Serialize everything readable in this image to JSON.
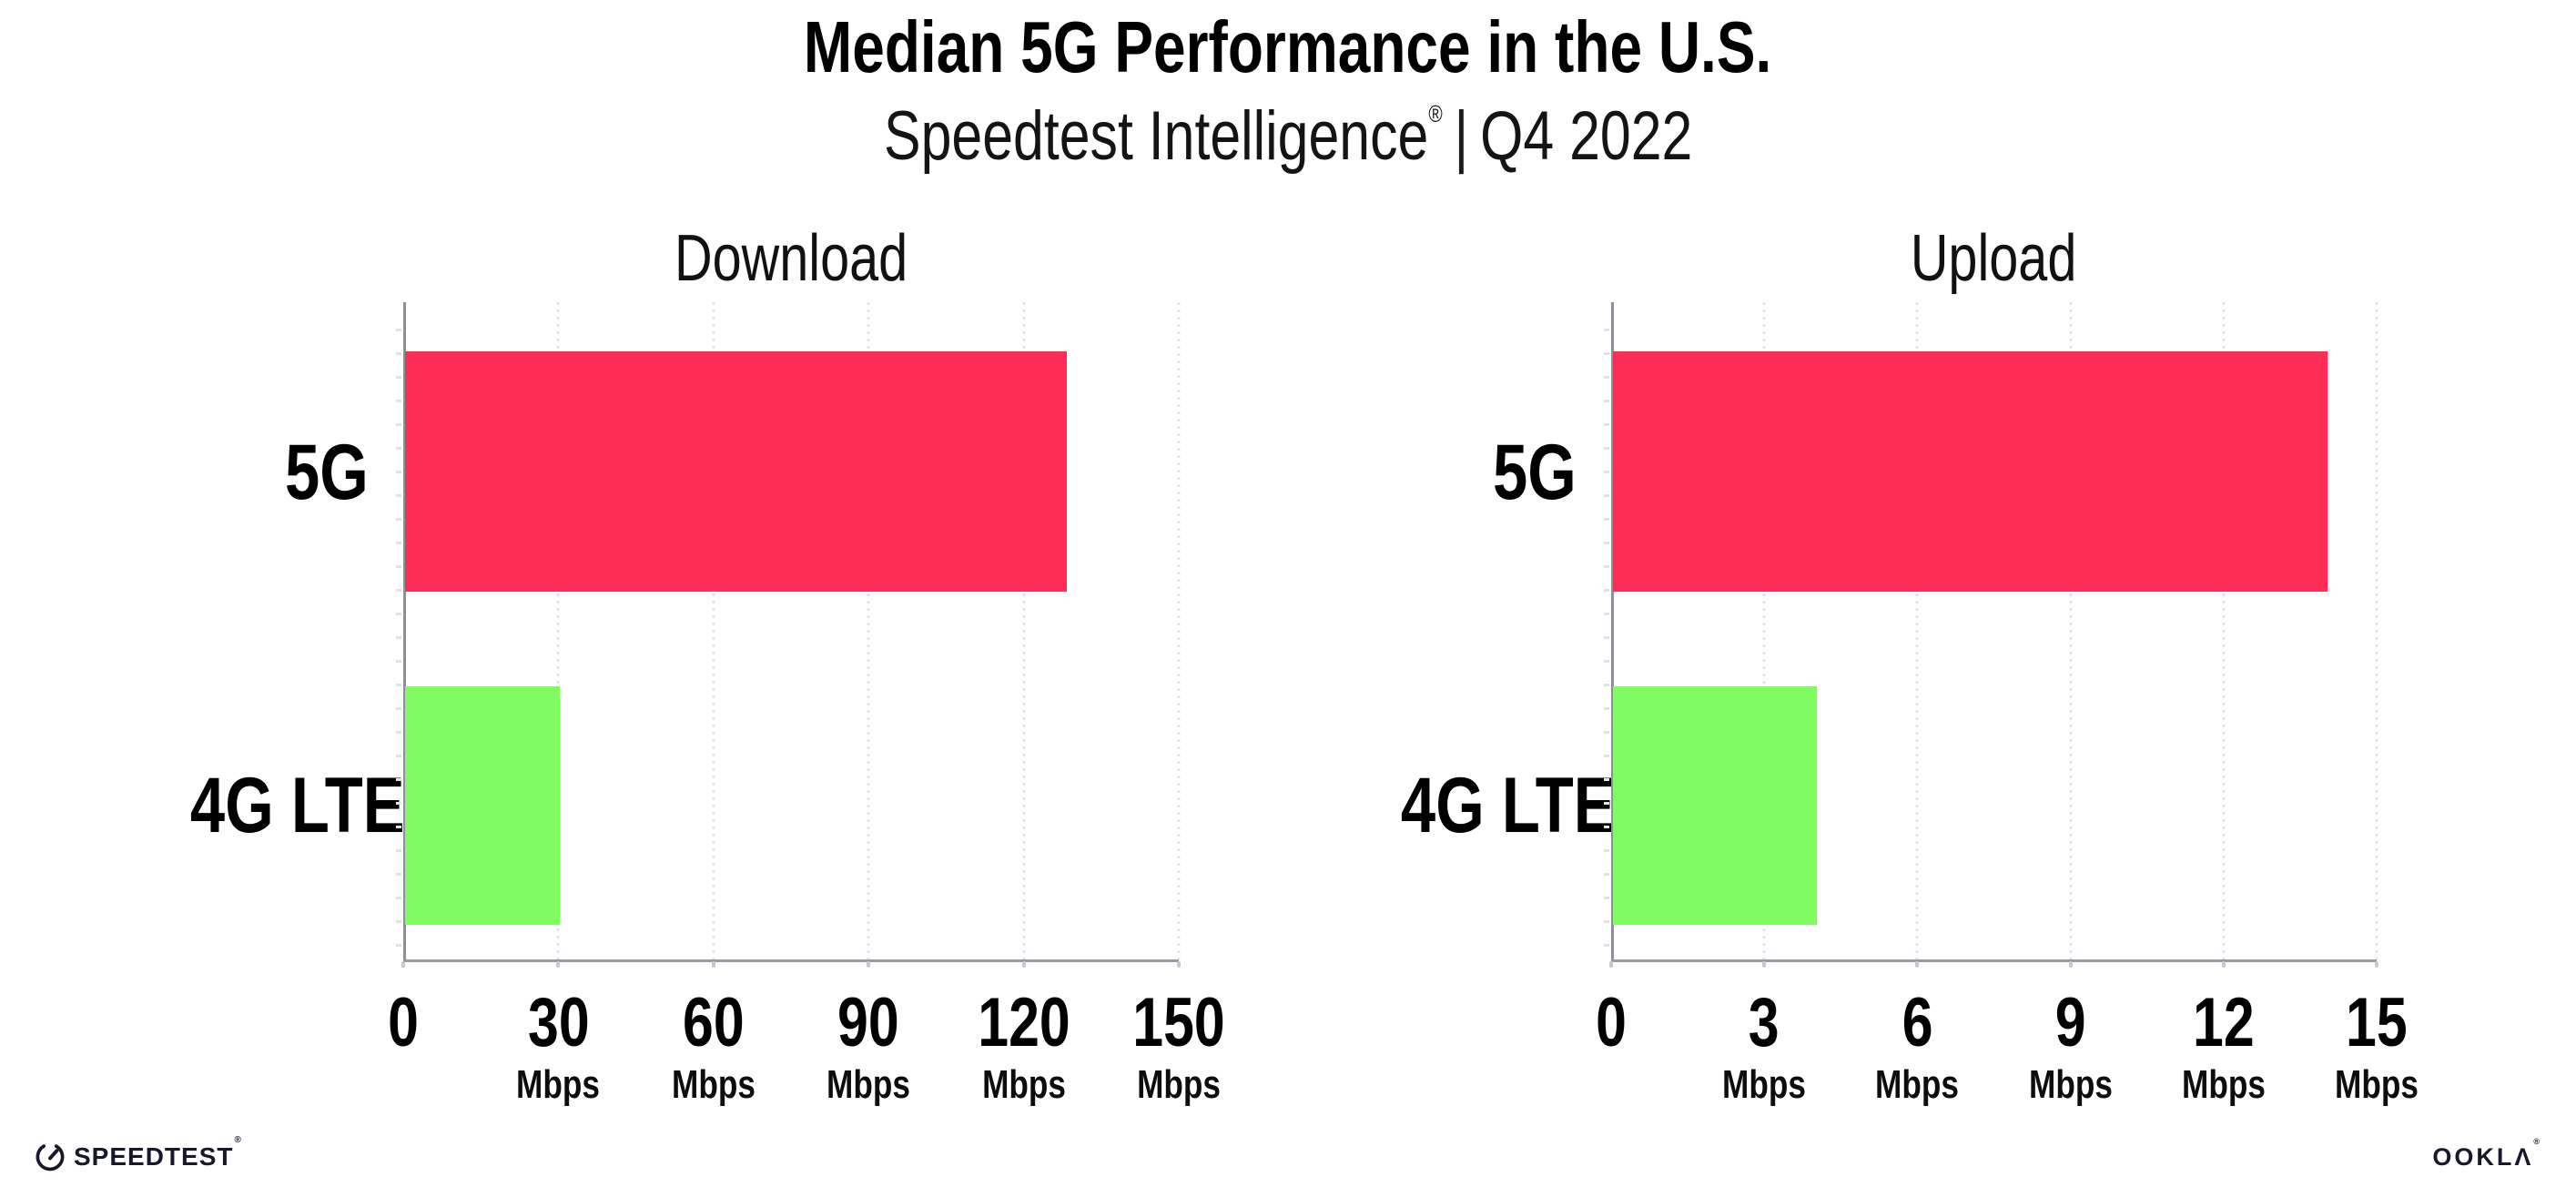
{
  "header": {
    "title": "Median 5G Performance in the U.S.",
    "subtitle_brand": "Speedtest Intelligence",
    "subtitle_reg": "®",
    "subtitle_separator": "|",
    "subtitle_period": "Q4 2022"
  },
  "colors": {
    "bar_5g": "#FC2D57",
    "bar_4g_lte": "#80FB62",
    "gridline": "#E3E3ED",
    "axis": "#9A9AA2",
    "text": "#000000"
  },
  "chart_data": [
    {
      "type": "bar",
      "orientation": "horizontal",
      "title": "Download",
      "categories": [
        "5G",
        "4G LTE"
      ],
      "values": [
        128,
        30
      ],
      "unit": "Mbps",
      "tick_unit_label": "Mbps",
      "xlim": [
        0,
        150
      ],
      "xticks": [
        0,
        30,
        60,
        90,
        120,
        150
      ],
      "grid": "dotted-vertical",
      "legend": "none",
      "bar_colors": [
        "#FC2D57",
        "#80FB62"
      ]
    },
    {
      "type": "bar",
      "orientation": "horizontal",
      "title": "Upload",
      "categories": [
        "5G",
        "4G LTE"
      ],
      "values": [
        14,
        4
      ],
      "unit": "Mbps",
      "tick_unit_label": "Mbps",
      "xlim": [
        0,
        15
      ],
      "xticks": [
        0,
        3,
        6,
        9,
        12,
        15
      ],
      "grid": "dotted-vertical",
      "legend": "none",
      "bar_colors": [
        "#FC2D57",
        "#80FB62"
      ]
    }
  ],
  "footer": {
    "speedtest_wordmark": "SPEEDTEST",
    "speedtest_reg": "®",
    "ookla_wordmark": "OOKLΛ",
    "ookla_reg": "®"
  }
}
